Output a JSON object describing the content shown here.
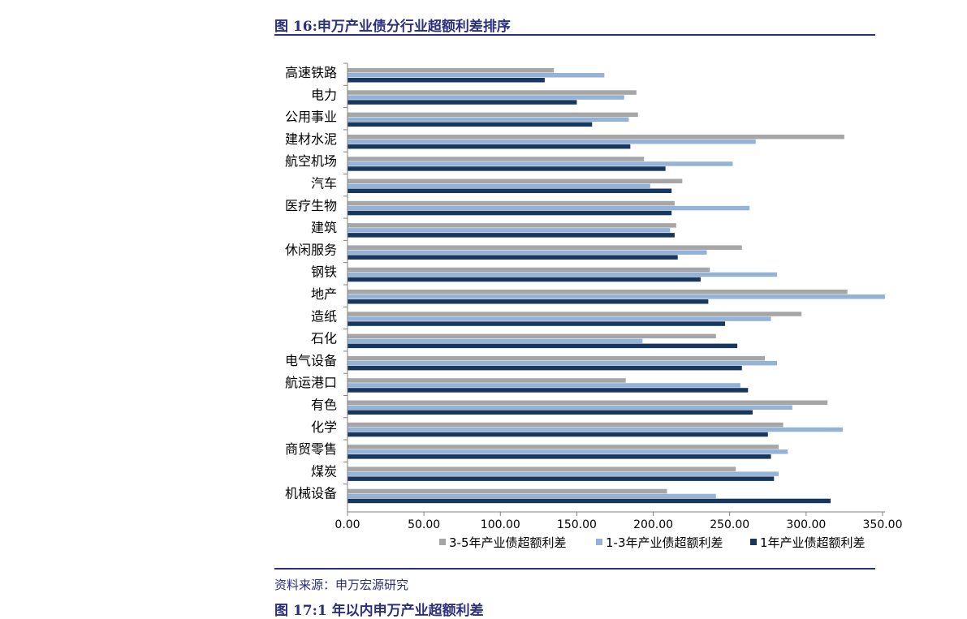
{
  "figure": {
    "title": "图 16:申万产业债分行业超额利差排序",
    "source": "资料来源：申万宏源研究",
    "next_title": "图 17:1 年以内申万产业超额利差"
  },
  "colors": {
    "series_3_5": "#a6a6a6",
    "series_1_3": "#95b3d7",
    "series_1": "#17375e",
    "accent": "#2b2f7c"
  },
  "chart_data": {
    "type": "bar",
    "orientation": "horizontal",
    "title": "",
    "xlabel": "",
    "ylabel": "",
    "xlim": [
      0,
      350
    ],
    "x_ticks": [
      "0.00",
      "50.00",
      "100.00",
      "150.00",
      "200.00",
      "250.00",
      "300.00",
      "350.00"
    ],
    "x_tick_values": [
      0,
      50,
      100,
      150,
      200,
      250,
      300,
      350
    ],
    "grid": false,
    "legend_position": "bottom",
    "categories": [
      "高速铁路",
      "电力",
      "公用事业",
      "建材水泥",
      "航空机场",
      "汽车",
      "医疗生物",
      "建筑",
      "休闲服务",
      "钢铁",
      "地产",
      "造纸",
      "石化",
      "电气设备",
      "航运港口",
      "有色",
      "化学",
      "商贸零售",
      "煤炭",
      "机械设备"
    ],
    "series": [
      {
        "name": "3-5年产业债超额利差",
        "values": [
          135,
          189,
          190,
          325,
          194,
          219,
          214,
          215,
          258,
          237,
          327,
          297,
          241,
          273,
          182,
          314,
          285,
          282,
          254,
          209
        ]
      },
      {
        "name": "1-3年产业债超额利差",
        "values": [
          168,
          181,
          184,
          267,
          252,
          198,
          263,
          211,
          235,
          281,
          353,
          277,
          193,
          281,
          257,
          291,
          324,
          288,
          282,
          241
        ]
      },
      {
        "name": "1年产业债超额利差",
        "values": [
          129,
          150,
          160,
          185,
          208,
          212,
          212,
          214,
          216,
          231,
          236,
          247,
          255,
          258,
          262,
          265,
          275,
          277,
          279,
          316
        ]
      }
    ]
  }
}
